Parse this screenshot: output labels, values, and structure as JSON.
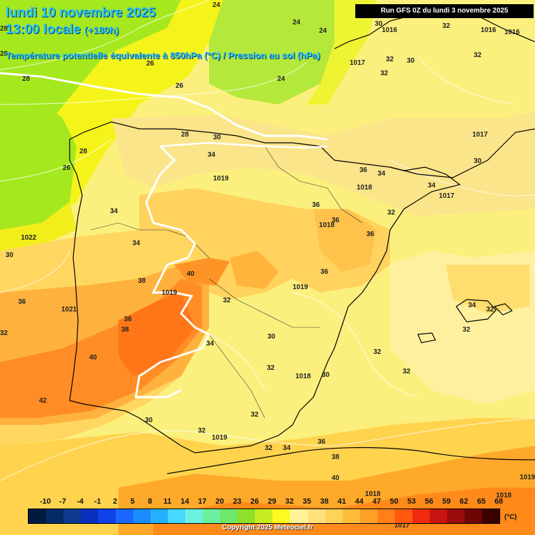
{
  "title": {
    "date": "lundi 10 novembre 2025",
    "time": "13:00 locale",
    "offset": "(+180h)",
    "field": "Température potentielle équivalente à 850hPa (°C) / Pression au sol (hPa)"
  },
  "run": "Run GFS 0Z du lundi 3 novembre 2025",
  "colorbar": {
    "labels": [
      "-10",
      "-7",
      "-4",
      "-1",
      "2",
      "5",
      "8",
      "11",
      "14",
      "17",
      "20",
      "23",
      "26",
      "29",
      "32",
      "35",
      "38",
      "41",
      "44",
      "47",
      "50",
      "53",
      "56",
      "59",
      "62",
      "65",
      "68"
    ],
    "colors": [
      "#001a40",
      "#062a66",
      "#0d3a8c",
      "#0a2fbf",
      "#1040e8",
      "#1a66ff",
      "#1a8cff",
      "#25b0ff",
      "#48d8ff",
      "#6cf2e0",
      "#6cf0a0",
      "#6ee86a",
      "#8ee02a",
      "#c6ee20",
      "#fcfa20",
      "#fff39a",
      "#ffe27a",
      "#ffd25a",
      "#ffbc3a",
      "#ffa028",
      "#ff7f18",
      "#ff5a10",
      "#f02a10",
      "#c81410",
      "#9a0a0a",
      "#6e0505",
      "#3a0000"
    ],
    "unit": "(°C)"
  },
  "copyright": "Copyright 2025 Meteociel.fr",
  "map_labels": {
    "theta_e": [
      "24",
      "24",
      "24",
      "26",
      "26",
      "24",
      "28",
      "28",
      "26",
      "30",
      "34",
      "30",
      "32",
      "32",
      "32",
      "36",
      "34",
      "36",
      "36",
      "34",
      "32",
      "36",
      "36",
      "34",
      "34",
      "32",
      "30",
      "36",
      "38",
      "40",
      "38",
      "36",
      "38",
      "40",
      "42",
      "32",
      "34",
      "30",
      "32",
      "30",
      "32",
      "32",
      "32",
      "34",
      "36",
      "38",
      "40",
      "28",
      "30",
      "30",
      "32"
    ],
    "pressure": [
      "1016",
      "1016",
      "1017",
      "1017",
      "1019",
      "1018",
      "1017",
      "1018",
      "1022",
      "1021",
      "1019",
      "1019",
      "1018",
      "1019",
      "1018",
      "1017",
      "1019",
      "1018"
    ]
  }
}
